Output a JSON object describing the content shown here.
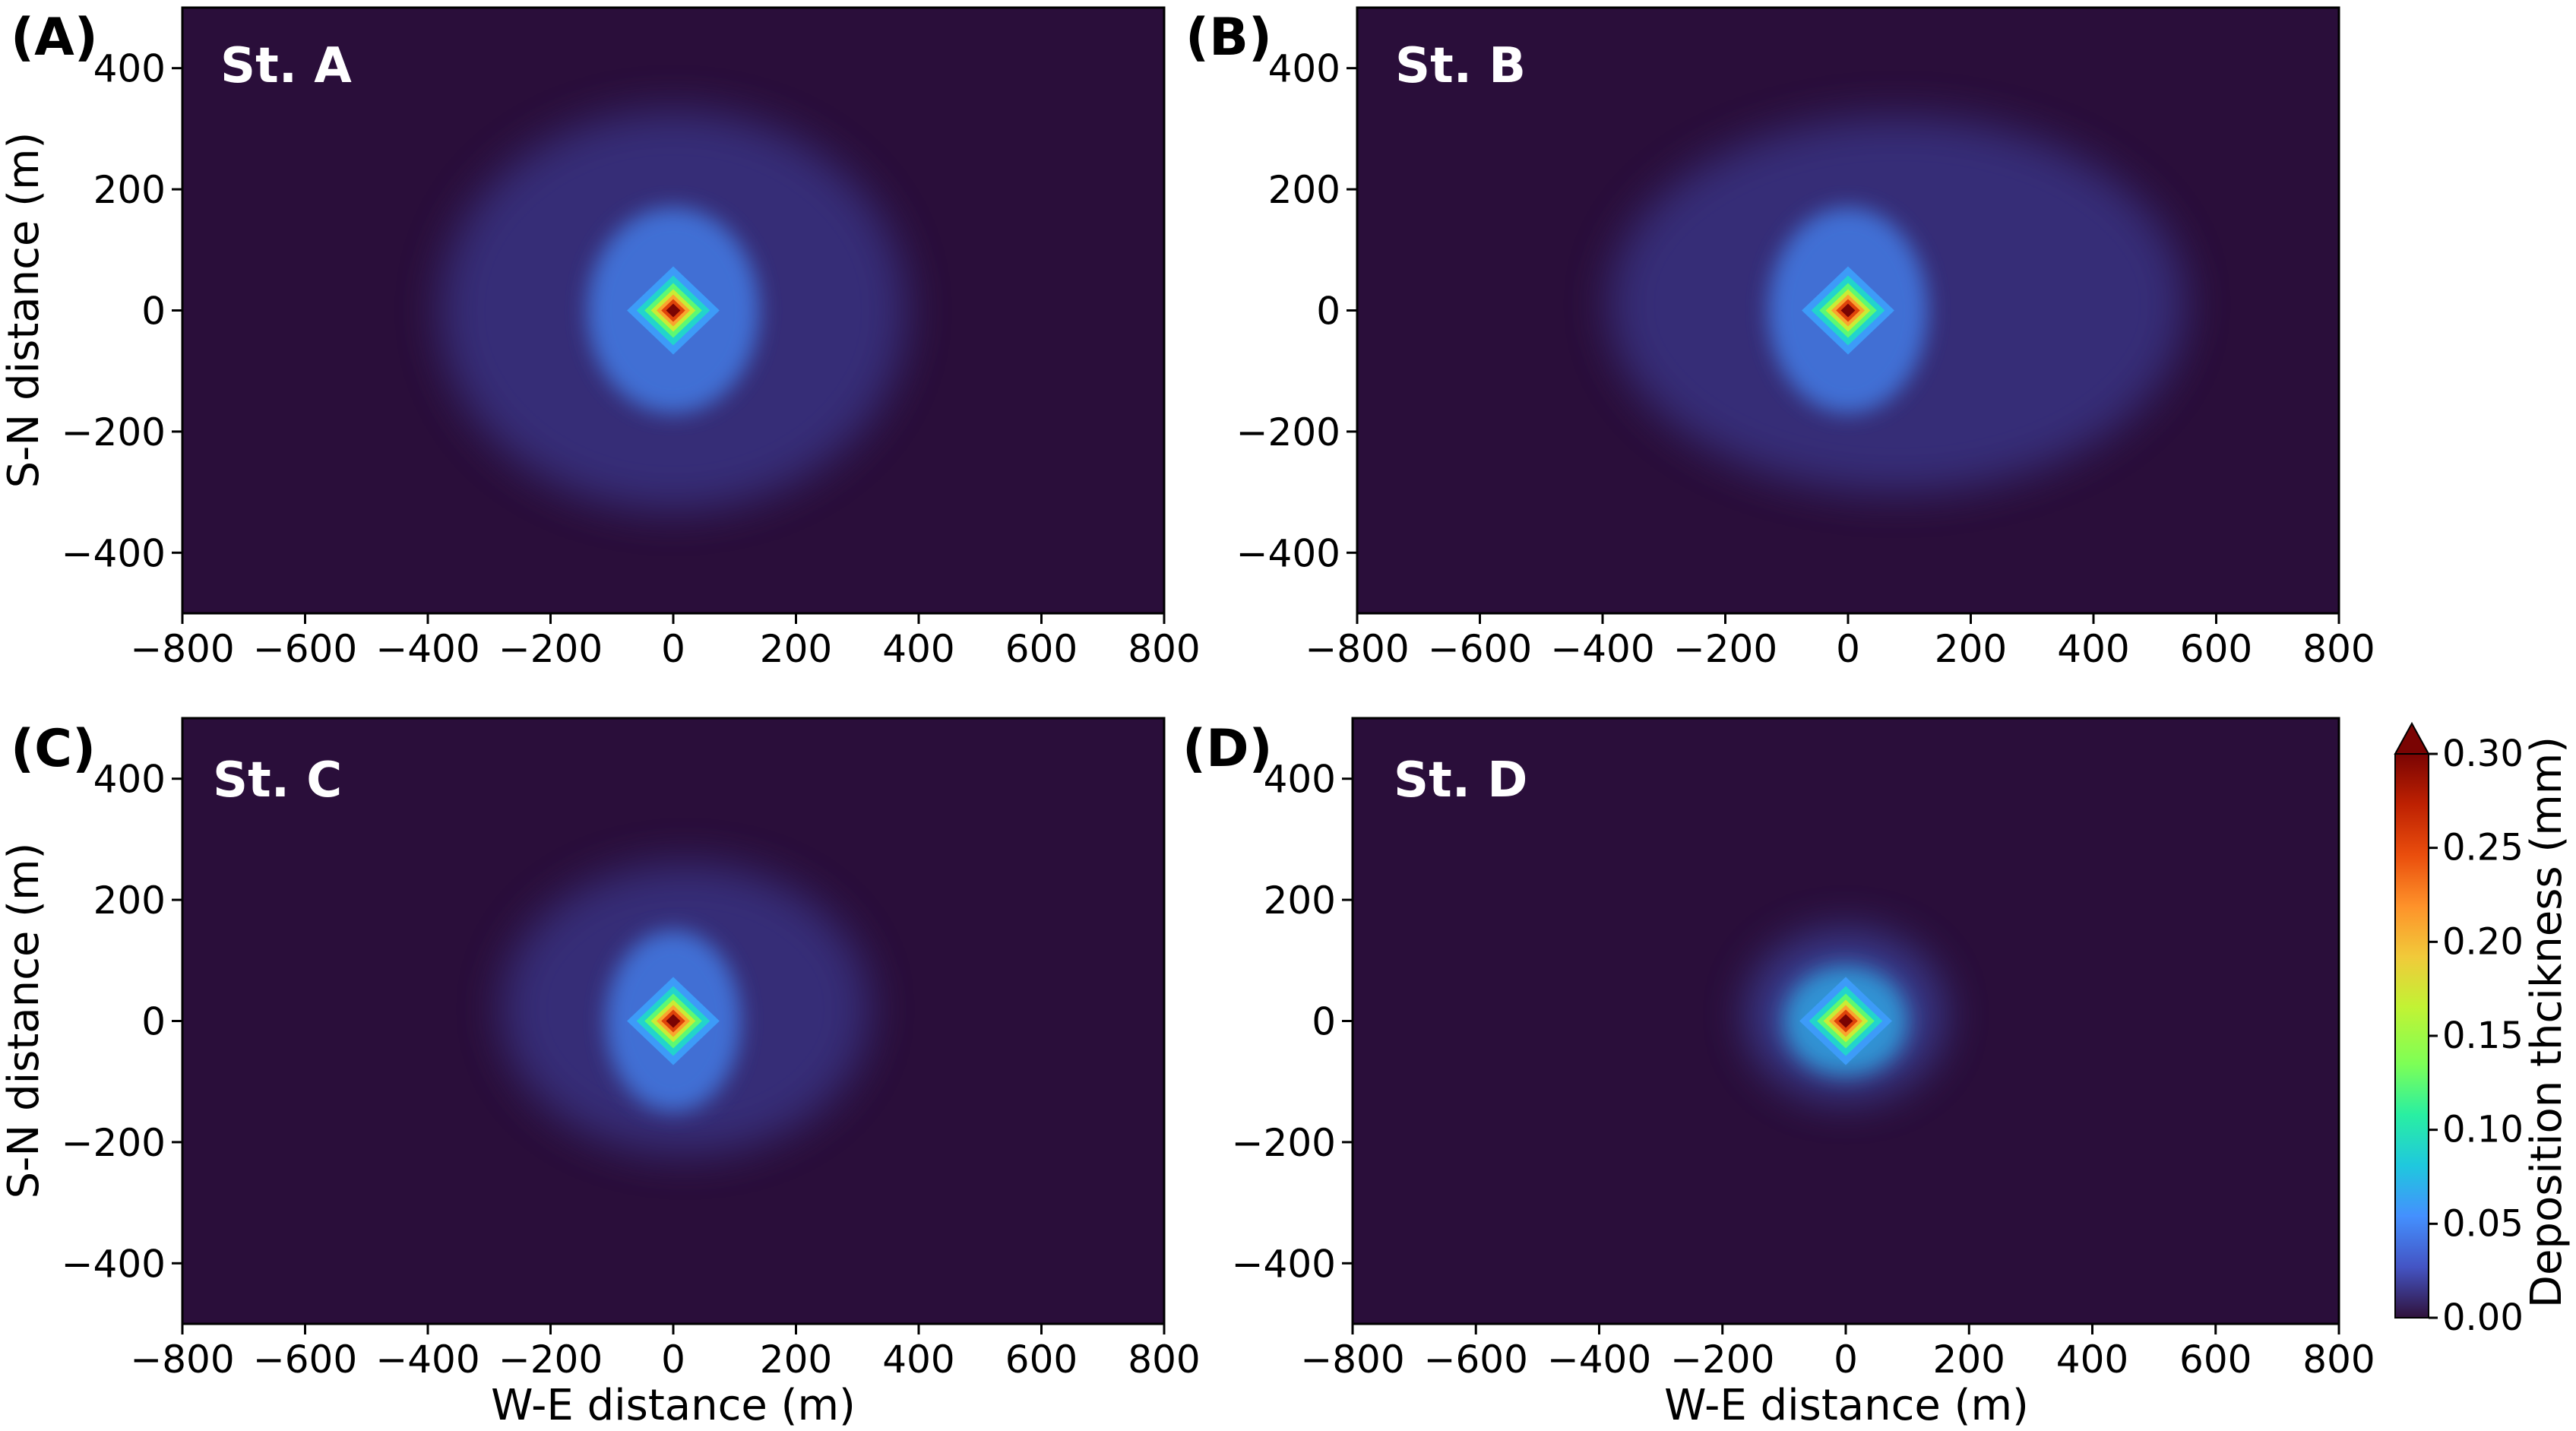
{
  "chart_data": [
    {
      "type": "heatmap",
      "panel_letter": "(A)",
      "station_label": "St. A",
      "xlabel": "",
      "ylabel": "S-N distance (m)",
      "xlim": [
        -800,
        800
      ],
      "ylim": [
        -500,
        500
      ],
      "x_ticks": [
        "−800",
        "−600",
        "−400",
        "−200",
        "0",
        "200",
        "400",
        "600",
        "800"
      ],
      "y_ticks": [
        "400",
        "200",
        "0",
        "−200",
        "−400"
      ],
      "peak": {
        "x": 0,
        "y": 0,
        "value": 0.3
      },
      "halo": {
        "x": 0,
        "y": 0,
        "rx": 380,
        "ry": 330,
        "level": 0.02
      },
      "core": {
        "rx": 140,
        "ry": 170,
        "level": 0.05
      }
    },
    {
      "type": "heatmap",
      "panel_letter": "(B)",
      "station_label": "St. B",
      "xlabel": "",
      "ylabel": "",
      "xlim": [
        -800,
        800
      ],
      "ylim": [
        -500,
        500
      ],
      "x_ticks": [
        "−800",
        "−600",
        "−400",
        "−200",
        "0",
        "200",
        "400",
        "600",
        "800"
      ],
      "y_ticks": [
        "400",
        "200",
        "0",
        "−200",
        "−400"
      ],
      "peak": {
        "x": 0,
        "y": 0,
        "value": 0.3
      },
      "halo": {
        "x": 80,
        "y": 10,
        "rx": 470,
        "ry": 310,
        "level": 0.02
      },
      "core": {
        "rx": 130,
        "ry": 170,
        "level": 0.05
      }
    },
    {
      "type": "heatmap",
      "panel_letter": "(C)",
      "station_label": "St. C",
      "xlabel": "W-E distance (m)",
      "ylabel": "S-N distance (m)",
      "xlim": [
        -800,
        800
      ],
      "ylim": [
        -500,
        500
      ],
      "x_ticks": [
        "−800",
        "−600",
        "−400",
        "−200",
        "0",
        "200",
        "400",
        "600",
        "800"
      ],
      "y_ticks": [
        "400",
        "200",
        "0",
        "−200",
        "−400"
      ],
      "peak": {
        "x": 0,
        "y": 0,
        "value": 0.3
      },
      "halo": {
        "x": 20,
        "y": 20,
        "rx": 300,
        "ry": 240,
        "level": 0.02
      },
      "core": {
        "rx": 110,
        "ry": 150,
        "level": 0.05
      }
    },
    {
      "type": "heatmap",
      "panel_letter": "(D)",
      "station_label": "St. D",
      "xlabel": "W-E distance (m)",
      "ylabel": "",
      "xlim": [
        -800,
        800
      ],
      "ylim": [
        -500,
        500
      ],
      "x_ticks": [
        "−800",
        "−600",
        "−400",
        "−200",
        "0",
        "200",
        "400",
        "600",
        "800"
      ],
      "y_ticks": [
        "400",
        "200",
        "0",
        "−200",
        "−400"
      ],
      "peak": {
        "x": 0,
        "y": 0,
        "value": 0.3
      },
      "halo": {
        "x": 0,
        "y": 10,
        "rx": 160,
        "ry": 140,
        "level": 0.04
      },
      "core": {
        "rx": 100,
        "ry": 90,
        "level": 0.07
      }
    }
  ],
  "colorbar": {
    "label": "Deposition thcikness (mm)",
    "range": [
      0.0,
      0.3
    ],
    "extend": "max",
    "ticks": [
      "0.00",
      "0.05",
      "0.10",
      "0.15",
      "0.20",
      "0.25",
      "0.30"
    ],
    "colormap": "turbo",
    "background_color": "#2a0e3a"
  },
  "colors": {
    "turbo_stops": [
      "#30123b",
      "#4454c4",
      "#4490fe",
      "#1fc8de",
      "#29efa2",
      "#7dff56",
      "#c1f334",
      "#f1ca3a",
      "#fe922a",
      "#ea4e0d",
      "#be2102",
      "#7a0403"
    ]
  }
}
